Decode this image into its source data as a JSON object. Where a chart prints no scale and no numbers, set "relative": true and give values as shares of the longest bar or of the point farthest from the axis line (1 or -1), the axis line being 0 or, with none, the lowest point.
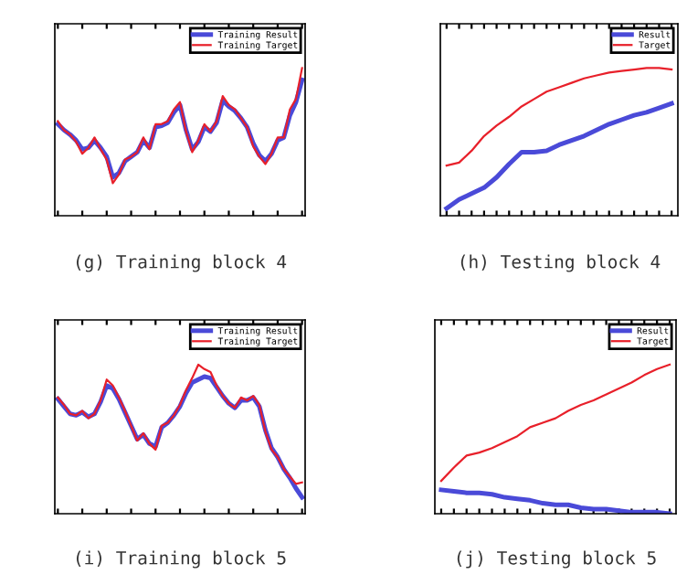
{
  "chart_data": [
    {
      "type": "line",
      "title": "(g) Training block 4",
      "relative": true,
      "tick_labels": false,
      "grid": false,
      "legend": "top right",
      "marker": "none",
      "line_style": "solid",
      "categories": [
        null,
        null,
        null,
        null,
        null,
        null,
        null,
        null,
        null,
        null,
        null,
        null,
        null,
        null,
        null,
        null,
        null,
        null,
        null,
        null,
        null,
        null,
        null,
        null,
        null,
        null,
        null,
        null,
        null,
        null,
        null,
        null,
        null,
        null,
        null,
        null,
        null,
        null,
        null,
        null,
        null
      ],
      "series": [
        {
          "name": "Training Result",
          "color": "#4a4ad8",
          "values": [
            0.62,
            0.58,
            0.55,
            0.51,
            0.45,
            0.46,
            0.51,
            0.46,
            0.4,
            0.26,
            0.29,
            0.37,
            0.4,
            0.43,
            0.51,
            0.46,
            0.6,
            0.61,
            0.63,
            0.7,
            0.75,
            0.58,
            0.45,
            0.5,
            0.6,
            0.57,
            0.63,
            0.78,
            0.74,
            0.71,
            0.66,
            0.6,
            0.49,
            0.41,
            0.37,
            0.42,
            0.51,
            0.53,
            0.68,
            0.77,
            0.92
          ]
        },
        {
          "name": "Training Target",
          "color": "#e8202a",
          "values": [
            0.64,
            0.58,
            0.55,
            0.5,
            0.42,
            0.46,
            0.53,
            0.45,
            0.38,
            0.22,
            0.28,
            0.38,
            0.4,
            0.43,
            0.53,
            0.45,
            0.62,
            0.62,
            0.64,
            0.72,
            0.77,
            0.57,
            0.43,
            0.51,
            0.62,
            0.57,
            0.64,
            0.81,
            0.75,
            0.72,
            0.66,
            0.6,
            0.47,
            0.4,
            0.35,
            0.42,
            0.53,
            0.53,
            0.72,
            0.79,
            1.0
          ]
        }
      ]
    },
    {
      "type": "line",
      "title": "(h) Testing block 4",
      "relative": true,
      "tick_labels": false,
      "grid": false,
      "legend": "top right",
      "marker": "none",
      "line_style": "solid",
      "categories": [
        null,
        null,
        null,
        null,
        null,
        null,
        null,
        null,
        null,
        null,
        null,
        null,
        null,
        null,
        null,
        null,
        null,
        null,
        null
      ],
      "series": [
        {
          "name": "Result",
          "color": "#4a4ad8",
          "values": [
            0.05,
            0.11,
            0.15,
            0.19,
            0.26,
            0.35,
            0.43,
            0.43,
            0.44,
            0.48,
            0.51,
            0.54,
            0.58,
            0.62,
            0.65,
            0.68,
            0.7,
            0.73,
            0.76
          ]
        },
        {
          "name": "Target",
          "color": "#e8202a",
          "values": [
            0.34,
            0.36,
            0.44,
            0.54,
            0.61,
            0.67,
            0.74,
            0.79,
            0.84,
            0.87,
            0.9,
            0.93,
            0.95,
            0.97,
            0.98,
            0.99,
            1.0,
            1.0,
            0.99
          ]
        }
      ]
    },
    {
      "type": "line",
      "title": "(i) Training block 5",
      "relative": true,
      "tick_labels": false,
      "grid": false,
      "legend": "top right",
      "marker": "none",
      "line_style": "solid",
      "categories": [
        null,
        null,
        null,
        null,
        null,
        null,
        null,
        null,
        null,
        null,
        null,
        null,
        null,
        null,
        null,
        null,
        null,
        null,
        null,
        null,
        null,
        null,
        null,
        null,
        null,
        null,
        null,
        null,
        null,
        null,
        null,
        null,
        null,
        null,
        null,
        null,
        null,
        null,
        null,
        null,
        null
      ],
      "series": [
        {
          "name": "Training Result",
          "color": "#4a4ad8",
          "values": [
            0.77,
            0.72,
            0.67,
            0.66,
            0.68,
            0.65,
            0.67,
            0.75,
            0.86,
            0.84,
            0.77,
            0.68,
            0.59,
            0.5,
            0.53,
            0.47,
            0.45,
            0.58,
            0.61,
            0.66,
            0.72,
            0.81,
            0.88,
            0.9,
            0.92,
            0.91,
            0.85,
            0.79,
            0.74,
            0.71,
            0.76,
            0.76,
            0.78,
            0.72,
            0.56,
            0.44,
            0.38,
            0.3,
            0.24,
            0.17,
            0.11
          ]
        },
        {
          "name": "Training Target",
          "color": "#e8202a",
          "values": [
            0.78,
            0.73,
            0.67,
            0.66,
            0.69,
            0.64,
            0.67,
            0.76,
            0.9,
            0.86,
            0.78,
            0.69,
            0.59,
            0.49,
            0.54,
            0.47,
            0.43,
            0.59,
            0.61,
            0.66,
            0.73,
            0.83,
            0.91,
            1.0,
            0.97,
            0.95,
            0.86,
            0.79,
            0.74,
            0.71,
            0.78,
            0.76,
            0.79,
            0.73,
            0.55,
            0.43,
            0.38,
            0.3,
            0.25,
            0.2,
            0.21
          ]
        }
      ]
    },
    {
      "type": "line",
      "title": "(j) Testing block 5",
      "relative": true,
      "tick_labels": false,
      "grid": false,
      "legend": "top right",
      "marker": "none",
      "line_style": "solid",
      "categories": [
        null,
        null,
        null,
        null,
        null,
        null,
        null,
        null,
        null,
        null,
        null,
        null,
        null,
        null,
        null,
        null,
        null,
        null,
        null
      ],
      "series": [
        {
          "name": "Result",
          "color": "#4a4ad8",
          "values": [
            0.16,
            0.15,
            0.14,
            0.14,
            0.13,
            0.11,
            0.1,
            0.09,
            0.07,
            0.06,
            0.06,
            0.04,
            0.03,
            0.03,
            0.02,
            0.01,
            0.01,
            0.01,
            0
          ]
        },
        {
          "name": "Target",
          "color": "#e8202a",
          "values": [
            0.22,
            0.31,
            0.39,
            0.41,
            0.44,
            0.48,
            0.52,
            0.58,
            0.61,
            0.64,
            0.69,
            0.73,
            0.76,
            0.8,
            0.84,
            0.88,
            0.93,
            0.97,
            1.0
          ]
        }
      ]
    }
  ]
}
